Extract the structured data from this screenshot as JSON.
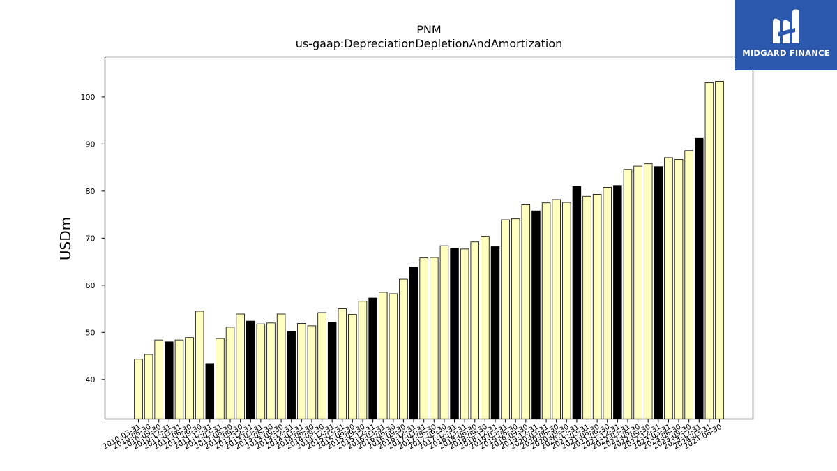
{
  "chart_data": {
    "type": "bar",
    "title": "PNM",
    "subtitle": "us-gaap:DepreciationDepletionAndAmortization",
    "xlabel": "",
    "ylabel": "USDm",
    "ylim": [
      31.6,
      108.5
    ],
    "yticks": [
      40,
      50,
      60,
      70,
      80,
      90,
      100
    ],
    "grid": false,
    "legend": "none",
    "colors": {
      "quarter": "#ffffc0",
      "annual": "#000000",
      "edge": "#000000"
    },
    "categories": [
      "2010-03-31",
      "2010-06-30",
      "2010-09-30",
      "2010-12-31",
      "2011-03-31",
      "2011-06-30",
      "2011-09-30",
      "2011-12-31",
      "2012-03-31",
      "2012-06-30",
      "2012-09-30",
      "2012-12-31",
      "2013-03-31",
      "2013-06-30",
      "2013-09-30",
      "2013-12-31",
      "2014-03-31",
      "2014-06-30",
      "2014-09-30",
      "2014-12-31",
      "2015-03-31",
      "2015-06-30",
      "2015-09-30",
      "2015-12-31",
      "2016-03-31",
      "2016-06-30",
      "2016-09-30",
      "2016-12-31",
      "2017-03-31",
      "2017-06-30",
      "2017-09-30",
      "2017-12-31",
      "2018-03-31",
      "2018-06-30",
      "2018-09-30",
      "2018-12-31",
      "2019-03-31",
      "2019-06-30",
      "2019-09-30",
      "2019-12-31",
      "2020-03-31",
      "2020-06-30",
      "2020-09-30",
      "2020-12-31",
      "2021-03-31",
      "2021-06-30",
      "2021-09-30",
      "2021-12-31",
      "2022-03-31",
      "2022-06-30",
      "2022-09-30",
      "2022-12-31",
      "2023-03-31",
      "2023-06-30",
      "2023-09-30",
      "2023-12-31",
      "2024-03-31",
      "2024-06-30"
    ],
    "values": [
      44.3,
      45.3,
      48.4,
      48.0,
      48.4,
      48.9,
      54.5,
      43.4,
      48.7,
      51.1,
      53.9,
      52.4,
      51.8,
      52.0,
      53.9,
      50.2,
      51.9,
      51.4,
      54.2,
      52.2,
      55.0,
      53.8,
      56.6,
      57.3,
      58.5,
      58.2,
      61.3,
      63.9,
      65.8,
      65.9,
      68.4,
      67.9,
      67.7,
      69.2,
      70.4,
      68.2,
      73.9,
      74.1,
      77.1,
      75.8,
      77.5,
      78.2,
      77.6,
      81.0,
      78.9,
      79.3,
      80.8,
      81.2,
      84.6,
      85.3,
      85.8,
      85.2,
      87.1,
      86.7,
      88.6,
      91.2,
      103.0,
      103.3
    ],
    "annual_flags": [
      0,
      0,
      0,
      1,
      0,
      0,
      0,
      1,
      0,
      0,
      0,
      1,
      0,
      0,
      0,
      1,
      0,
      0,
      0,
      1,
      0,
      0,
      0,
      1,
      0,
      0,
      0,
      1,
      0,
      0,
      0,
      1,
      0,
      0,
      0,
      1,
      0,
      0,
      0,
      1,
      0,
      0,
      0,
      1,
      0,
      0,
      0,
      1,
      0,
      0,
      0,
      1,
      0,
      0,
      0,
      1,
      0,
      0
    ]
  },
  "logo": {
    "text": "MIDGARD FINANCE",
    "icon": "midgard-logo-icon"
  }
}
